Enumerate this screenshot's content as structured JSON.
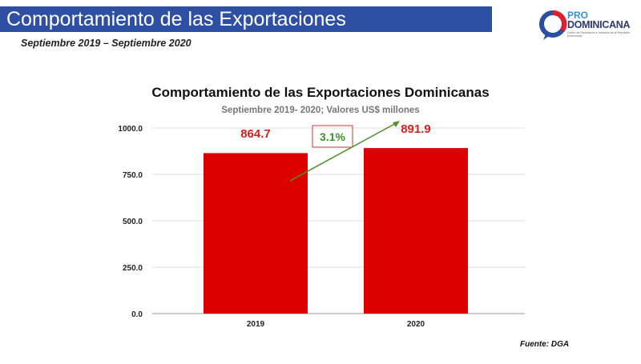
{
  "header": {
    "title": "Comportamiento de las Exportaciones",
    "period": "Septiembre 2019 – Septiembre 2020"
  },
  "logo": {
    "line1": "PRO",
    "line2": "DOMINICANA",
    "tagline": "Centro de Exportación e Inversión de la República Dominicana"
  },
  "footer": {
    "source": "Fuente: DGA"
  },
  "chart_data": {
    "type": "bar",
    "title": "Comportamiento de las Exportaciones Dominicanas",
    "subtitle": "Septiembre 2019- 2020; Valores US$ millones",
    "categories": [
      "2019",
      "2020"
    ],
    "values": [
      864.7,
      891.9
    ],
    "data_labels": [
      "864.7",
      "891.9"
    ],
    "ylim": [
      0,
      1000
    ],
    "yticks": [
      0,
      250,
      500,
      750,
      1000
    ],
    "ytick_labels": [
      "0.0",
      "250.0",
      "500.0",
      "750.0",
      "1000.0"
    ],
    "grid": true,
    "bar_color": "#dd0000",
    "label_color": "#d42020",
    "annotation": {
      "text": "3.1%",
      "color": "#3f8f2a",
      "arrow_color": "#4f8f2a"
    }
  }
}
